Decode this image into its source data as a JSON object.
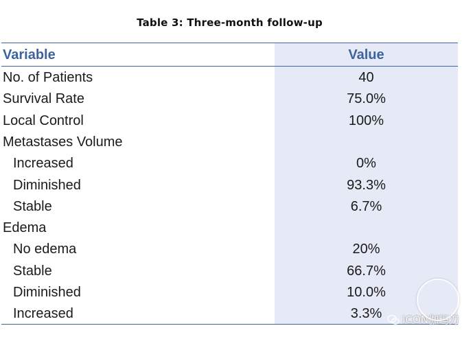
{
  "caption": "Table 3: Three-month follow-up",
  "table": {
    "headers": {
      "variable": "Variable",
      "value": "Value"
    },
    "rows": [
      {
        "label": "No. of Patients",
        "value": "40",
        "indent": false
      },
      {
        "label": "Survival Rate",
        "value": "75.0%",
        "indent": false
      },
      {
        "label": "Local Control",
        "value": "100%",
        "indent": false
      },
      {
        "label": "Metastases Volume",
        "value": "",
        "indent": false
      },
      {
        "label": "Increased",
        "value": "0%",
        "indent": true
      },
      {
        "label": "Diminished",
        "value": "93.3%",
        "indent": true
      },
      {
        "label": "Stable",
        "value": "6.7%",
        "indent": true
      },
      {
        "label": "Edema",
        "value": "",
        "indent": false
      },
      {
        "label": "No edema",
        "value": "20%",
        "indent": true
      },
      {
        "label": "Stable",
        "value": "66.7%",
        "indent": true
      },
      {
        "label": "Diminished",
        "value": "10.0%",
        "indent": true
      },
      {
        "label": "Increased",
        "value": "3.3%",
        "indent": true
      }
    ]
  },
  "watermark": {
    "text": "ICON伽玛刀",
    "icon": "wechat-icon"
  },
  "colors": {
    "header_text": "#3d62a0",
    "rule": "#3d62a0",
    "value_column_bg": "#e6e9f6"
  }
}
